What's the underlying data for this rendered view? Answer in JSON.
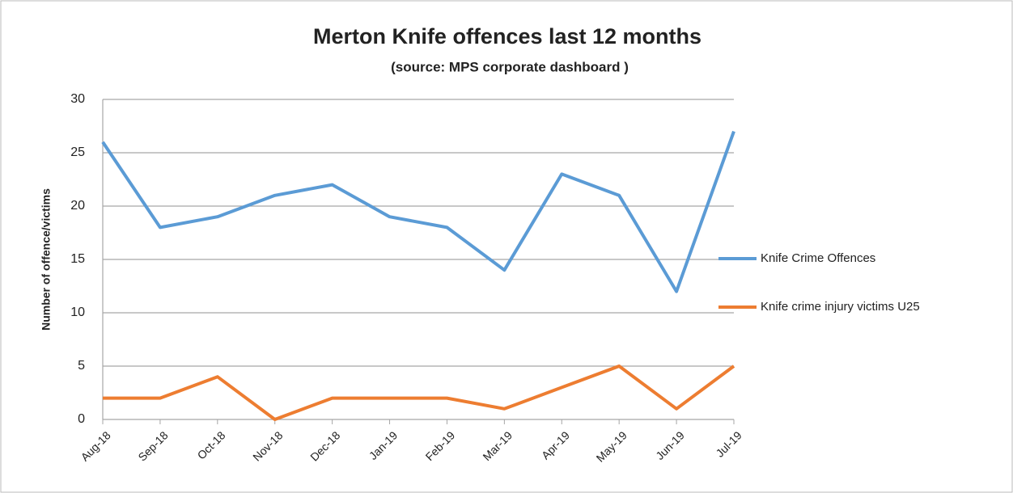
{
  "chart_data": {
    "type": "line",
    "title": "Merton Knife offences last 12 months",
    "subtitle": "(source: MPS corporate dashboard )",
    "y_label": "Number of offence/victims",
    "categories": [
      "Aug-18",
      "Sep-18",
      "Oct-18",
      "Nov-18",
      "Dec-18",
      "Jan-19",
      "Feb-19",
      "Mar-19",
      "Apr-19",
      "May-19",
      "Jun-19",
      "Jul-19"
    ],
    "series": [
      {
        "name": "Knife Crime Offences",
        "color": "#5b9bd5",
        "values": [
          26,
          18,
          19,
          21,
          22,
          19,
          18,
          14,
          23,
          21,
          12,
          27
        ]
      },
      {
        "name": "Knife crime injury victims U25",
        "color": "#ed7d31",
        "values": [
          2,
          2,
          4,
          0,
          2,
          2,
          2,
          1,
          3,
          5,
          1,
          5
        ]
      }
    ],
    "ylim": [
      0,
      30
    ],
    "yticks": [
      0,
      5,
      10,
      15,
      20,
      25,
      30
    ],
    "grid": true,
    "legend": "right"
  }
}
